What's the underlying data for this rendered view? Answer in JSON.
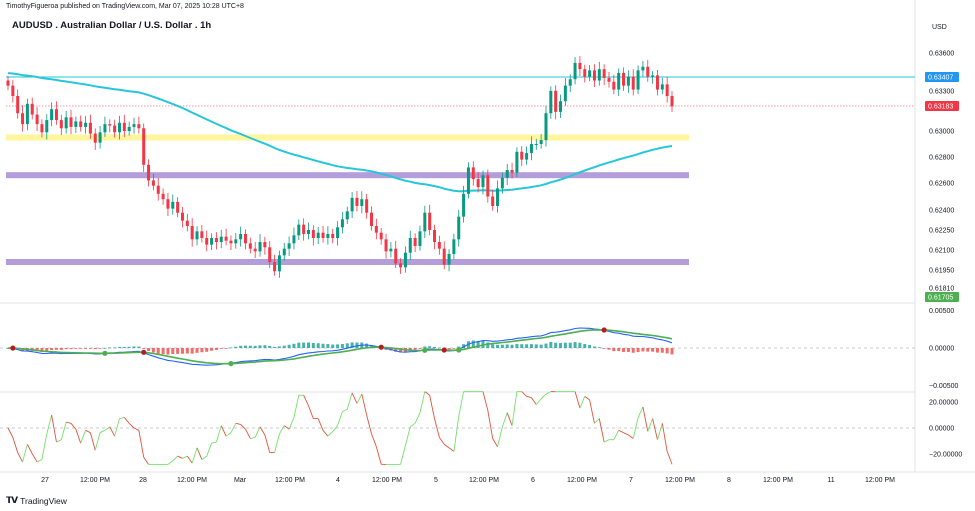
{
  "publisher_text": "TimothyFigueroa published on TradingView.com, Mar 07, 2025 10:28 UTC+8",
  "brand": "TradingView",
  "currency": "USD",
  "colors": {
    "up": "#089981",
    "down": "#f23645",
    "ema": "#26c6da",
    "zone_yellow": "#fff59d",
    "zone_purple": "#b39ddb",
    "macd": "#2962ff",
    "signal_up": "#4caf50",
    "signal_down": "#b71c1c",
    "osc_up": "#76e06a",
    "osc_down": "#e0533b"
  },
  "chart_data": {
    "type": "candlestick",
    "title": "AUDUSD . Australian Dollar / U.S. Dollar . 1h",
    "price_axis": {
      "ticks": [
        0.636,
        0.633,
        0.63,
        0.628,
        0.626,
        0.624,
        0.6225,
        0.621,
        0.6195,
        0.6181
      ]
    },
    "price_labels": [
      {
        "text": "0.63407",
        "value": 0.63407,
        "color": "#2196f3"
      },
      {
        "text": "0.63183",
        "value": 0.63183,
        "color": "#f23645"
      },
      {
        "text": "0.61705",
        "value": 0.61705,
        "color": "#4caf50"
      }
    ],
    "time_axis": {
      "labels": [
        "27",
        "12:00 PM",
        "28",
        "12:00 PM",
        "Mar",
        "12:00 PM",
        "4",
        "12:00 PM",
        "5",
        "12:00 PM",
        "6",
        "12:00 PM",
        "7",
        "12:00 PM",
        "8",
        "12:00 PM",
        "11",
        "12:00 PM"
      ]
    },
    "horizontal_lines": [
      {
        "name": "resistance",
        "value": 0.63407,
        "color": "#26c6da"
      },
      {
        "name": "last-price",
        "value": 0.63183,
        "color": "#f23645"
      }
    ],
    "zones": [
      {
        "name": "yellow-zone",
        "value": 0.6295,
        "color": "#fff59d"
      },
      {
        "name": "purple-zone-upper",
        "value": 0.6266,
        "color": "#b39ddb"
      },
      {
        "name": "purple-zone-lower",
        "value": 0.6201,
        "color": "#b39ddb"
      }
    ],
    "closes": [
      0.6334,
      0.6326,
      0.6313,
      0.6305,
      0.632,
      0.6312,
      0.6305,
      0.6299,
      0.6308,
      0.6316,
      0.6308,
      0.6302,
      0.631,
      0.6303,
      0.6307,
      0.6303,
      0.6306,
      0.6298,
      0.6291,
      0.6299,
      0.6305,
      0.6304,
      0.6299,
      0.6306,
      0.63,
      0.6303,
      0.6305,
      0.6302,
      0.6274,
      0.6262,
      0.6258,
      0.6252,
      0.6248,
      0.6241,
      0.6246,
      0.6238,
      0.6232,
      0.6228,
      0.6218,
      0.6224,
      0.6219,
      0.6214,
      0.6219,
      0.6216,
      0.622,
      0.6217,
      0.6215,
      0.6218,
      0.6222,
      0.6215,
      0.6211,
      0.6209,
      0.6216,
      0.6212,
      0.6201,
      0.6194,
      0.6206,
      0.6211,
      0.6215,
      0.6221,
      0.6229,
      0.6222,
      0.6225,
      0.6219,
      0.6223,
      0.6219,
      0.6222,
      0.6219,
      0.6227,
      0.6233,
      0.6239,
      0.6249,
      0.6243,
      0.6248,
      0.6238,
      0.6228,
      0.6223,
      0.6218,
      0.6209,
      0.6211,
      0.62,
      0.6197,
      0.6208,
      0.6219,
      0.6213,
      0.6224,
      0.6238,
      0.6225,
      0.6216,
      0.6211,
      0.6199,
      0.6207,
      0.6218,
      0.6235,
      0.6252,
      0.6272,
      0.6263,
      0.6257,
      0.6266,
      0.625,
      0.6243,
      0.6256,
      0.6264,
      0.627,
      0.6268,
      0.6284,
      0.6278,
      0.6283,
      0.629,
      0.629,
      0.6293,
      0.6313,
      0.633,
      0.6314,
      0.6322,
      0.6334,
      0.6339,
      0.6352,
      0.6347,
      0.6341,
      0.6346,
      0.6338,
      0.6347,
      0.634,
      0.6337,
      0.6331,
      0.6344,
      0.6334,
      0.6341,
      0.6331,
      0.6346,
      0.6349,
      0.6341,
      0.6342,
      0.6331,
      0.6335,
      0.6326,
      0.6318
    ]
  },
  "macd": {
    "ticks": [
      0.005,
      0.0,
      -0.005
    ],
    "tick_labels": [
      "0.00500",
      "0.00000",
      "−0.00500"
    ]
  },
  "oscillator": {
    "ticks": [
      20,
      0,
      -20
    ],
    "tick_labels": [
      "20.00000",
      "0.00000",
      "−20.00000"
    ]
  }
}
